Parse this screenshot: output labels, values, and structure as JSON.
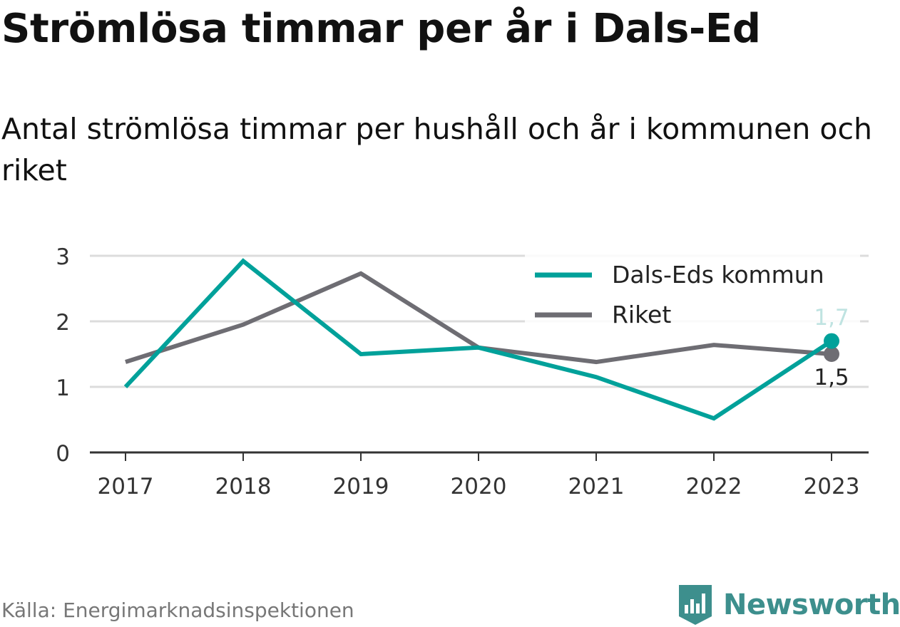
{
  "header": {
    "title": "Strömlösa timmar per år i Dals-Ed",
    "subtitle": "Antal strömlösa timmar per hushåll och år i kommunen och riket"
  },
  "chart_data": {
    "type": "line",
    "categories": [
      "2017",
      "2018",
      "2019",
      "2020",
      "2021",
      "2022",
      "2023"
    ],
    "series": [
      {
        "name": "Dals-Eds kommun",
        "color": "#00a19a",
        "values": [
          1.0,
          2.92,
          1.5,
          1.6,
          1.15,
          0.52,
          1.7
        ]
      },
      {
        "name": "Riket",
        "color": "#6e6d73",
        "values": [
          1.38,
          1.95,
          2.73,
          1.6,
          1.38,
          1.64,
          1.5
        ]
      }
    ],
    "ylim": [
      0,
      3
    ],
    "yticks": [
      "0",
      "1",
      "2",
      "3"
    ],
    "end_labels": [
      "1,7",
      "1,5"
    ],
    "legend_position": "top-right",
    "grid": true
  },
  "footer": {
    "source": "Källa: Energimarknadsinspektionen",
    "brand": "Newsworthy",
    "brand_icon": "newsworthy-logo-icon"
  }
}
